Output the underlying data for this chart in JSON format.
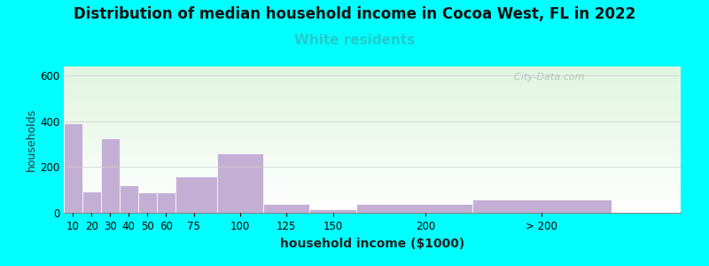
{
  "title": "Distribution of median household income in Cocoa West, FL in 2022",
  "subtitle": "White residents",
  "xlabel": "household income ($1000)",
  "ylabel": "households",
  "title_fontsize": 12,
  "subtitle_fontsize": 11,
  "subtitle_color": "#22cccc",
  "ylabel_fontsize": 9,
  "xlabel_fontsize": 10,
  "background_outer": "#00ffff",
  "bar_color": "#c4afd4",
  "bar_edgecolor": "#ffffff",
  "ylim": [
    0,
    640
  ],
  "yticks": [
    0,
    200,
    400,
    600
  ],
  "watermark": "  City-Data.com",
  "categories": [
    "10",
    "20",
    "30",
    "40",
    "50",
    "60",
    "75",
    "100",
    "125",
    "150",
    "200",
    "> 200"
  ],
  "left_edges": [
    5,
    15,
    25,
    35,
    45,
    55,
    65,
    87.5,
    112.5,
    137.5,
    162.5,
    225
  ],
  "bar_widths": [
    10,
    10,
    10,
    10,
    10,
    10,
    22.5,
    25,
    25,
    25,
    62.5,
    75
  ],
  "tick_positions": [
    10,
    20,
    30,
    40,
    50,
    60,
    75,
    100,
    125,
    150,
    200,
    262.5
  ],
  "values": [
    390,
    95,
    325,
    120,
    88,
    88,
    160,
    260,
    40,
    15,
    40,
    60
  ],
  "xlim": [
    5,
    337.5
  ]
}
